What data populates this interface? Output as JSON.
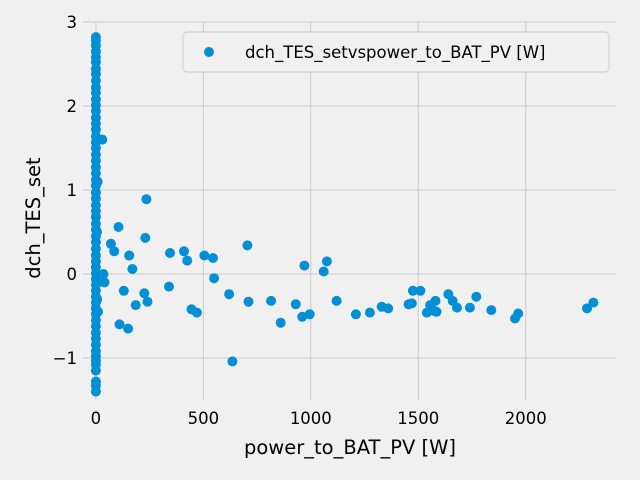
{
  "chart_data": {
    "type": "scatter",
    "title": "",
    "xlabel": "power_to_BAT_PV [W]",
    "ylabel": "dch_TES_set",
    "xlim": [
      -60,
      2420
    ],
    "ylim": [
      -1.5,
      3.0
    ],
    "xticks": [
      0,
      500,
      1000,
      1500,
      2000
    ],
    "yticks": [
      -1,
      0,
      1,
      2,
      3
    ],
    "grid": true,
    "legend": {
      "position": "top-right"
    },
    "series": [
      {
        "name": "dch_TES_setvspower_to_BAT_PV [W]",
        "color": "#008fd5",
        "points": [
          [
            0,
            2.82
          ],
          [
            0,
            2.78
          ],
          [
            0,
            2.72
          ],
          [
            0,
            2.65
          ],
          [
            0,
            2.58
          ],
          [
            0,
            2.52
          ],
          [
            0,
            2.44
          ],
          [
            0,
            2.38
          ],
          [
            0,
            2.3
          ],
          [
            0,
            2.22
          ],
          [
            0,
            2.16
          ],
          [
            0,
            2.08
          ],
          [
            0,
            2.01
          ],
          [
            0,
            1.94
          ],
          [
            0,
            1.86
          ],
          [
            0,
            1.79
          ],
          [
            0,
            1.72
          ],
          [
            0,
            1.64
          ],
          [
            0,
            1.57
          ],
          [
            0,
            1.5
          ],
          [
            0,
            1.42
          ],
          [
            0,
            1.35
          ],
          [
            0,
            1.27
          ],
          [
            0,
            1.2
          ],
          [
            0,
            1.12
          ],
          [
            0,
            1.05
          ],
          [
            0,
            0.97
          ],
          [
            0,
            0.9
          ],
          [
            0,
            0.82
          ],
          [
            0,
            0.75
          ],
          [
            0,
            0.68
          ],
          [
            0,
            0.6
          ],
          [
            0,
            0.53
          ],
          [
            0,
            0.45
          ],
          [
            0,
            0.38
          ],
          [
            0,
            0.3
          ],
          [
            0,
            0.22
          ],
          [
            0,
            0.15
          ],
          [
            0,
            0.08
          ],
          [
            0,
            0.01
          ],
          [
            0,
            -0.06
          ],
          [
            0,
            -0.13
          ],
          [
            0,
            -0.2
          ],
          [
            0,
            -0.27
          ],
          [
            0,
            -0.34
          ],
          [
            0,
            -0.41
          ],
          [
            0,
            -0.48
          ],
          [
            0,
            -0.55
          ],
          [
            0,
            -0.62
          ],
          [
            0,
            -0.7
          ],
          [
            0,
            -0.77
          ],
          [
            0,
            -0.84
          ],
          [
            0,
            -0.92
          ],
          [
            0,
            -0.98
          ],
          [
            0,
            -1.03
          ],
          [
            0,
            -1.08
          ],
          [
            0,
            -1.15
          ],
          [
            0,
            -1.28
          ],
          [
            0,
            -1.33
          ],
          [
            0,
            -1.4
          ],
          [
            5,
            0.5
          ],
          [
            6,
            -0.3
          ],
          [
            8,
            1.1
          ],
          [
            10,
            -0.45
          ],
          [
            30,
            1.6
          ],
          [
            35,
            0.0
          ],
          [
            40,
            -0.1
          ],
          [
            70,
            0.36
          ],
          [
            85,
            0.27
          ],
          [
            105,
            0.56
          ],
          [
            110,
            -0.6
          ],
          [
            130,
            -0.2
          ],
          [
            150,
            -0.65
          ],
          [
            155,
            0.22
          ],
          [
            170,
            0.06
          ],
          [
            185,
            -0.37
          ],
          [
            225,
            -0.23
          ],
          [
            230,
            0.43
          ],
          [
            235,
            0.89
          ],
          [
            240,
            -0.33
          ],
          [
            340,
            -0.15
          ],
          [
            345,
            0.25
          ],
          [
            410,
            0.27
          ],
          [
            425,
            0.16
          ],
          [
            445,
            -0.42
          ],
          [
            470,
            -0.46
          ],
          [
            505,
            0.22
          ],
          [
            545,
            0.19
          ],
          [
            550,
            -0.05
          ],
          [
            620,
            -0.24
          ],
          [
            635,
            -1.04
          ],
          [
            705,
            0.34
          ],
          [
            710,
            -0.33
          ],
          [
            815,
            -0.32
          ],
          [
            860,
            -0.58
          ],
          [
            930,
            -0.36
          ],
          [
            960,
            -0.51
          ],
          [
            970,
            0.1
          ],
          [
            995,
            -0.48
          ],
          [
            1060,
            0.03
          ],
          [
            1075,
            0.15
          ],
          [
            1120,
            -0.32
          ],
          [
            1210,
            -0.48
          ],
          [
            1275,
            -0.46
          ],
          [
            1330,
            -0.39
          ],
          [
            1360,
            -0.41
          ],
          [
            1455,
            -0.36
          ],
          [
            1470,
            -0.35
          ],
          [
            1475,
            -0.2
          ],
          [
            1510,
            -0.2
          ],
          [
            1540,
            -0.46
          ],
          [
            1555,
            -0.37
          ],
          [
            1575,
            -0.44
          ],
          [
            1580,
            -0.32
          ],
          [
            1585,
            -0.45
          ],
          [
            1640,
            -0.24
          ],
          [
            1660,
            -0.32
          ],
          [
            1680,
            -0.4
          ],
          [
            1740,
            -0.4
          ],
          [
            1770,
            -0.27
          ],
          [
            1840,
            -0.43
          ],
          [
            1950,
            -0.53
          ],
          [
            1965,
            -0.47
          ],
          [
            2285,
            -0.41
          ],
          [
            2315,
            -0.34
          ]
        ]
      }
    ]
  }
}
